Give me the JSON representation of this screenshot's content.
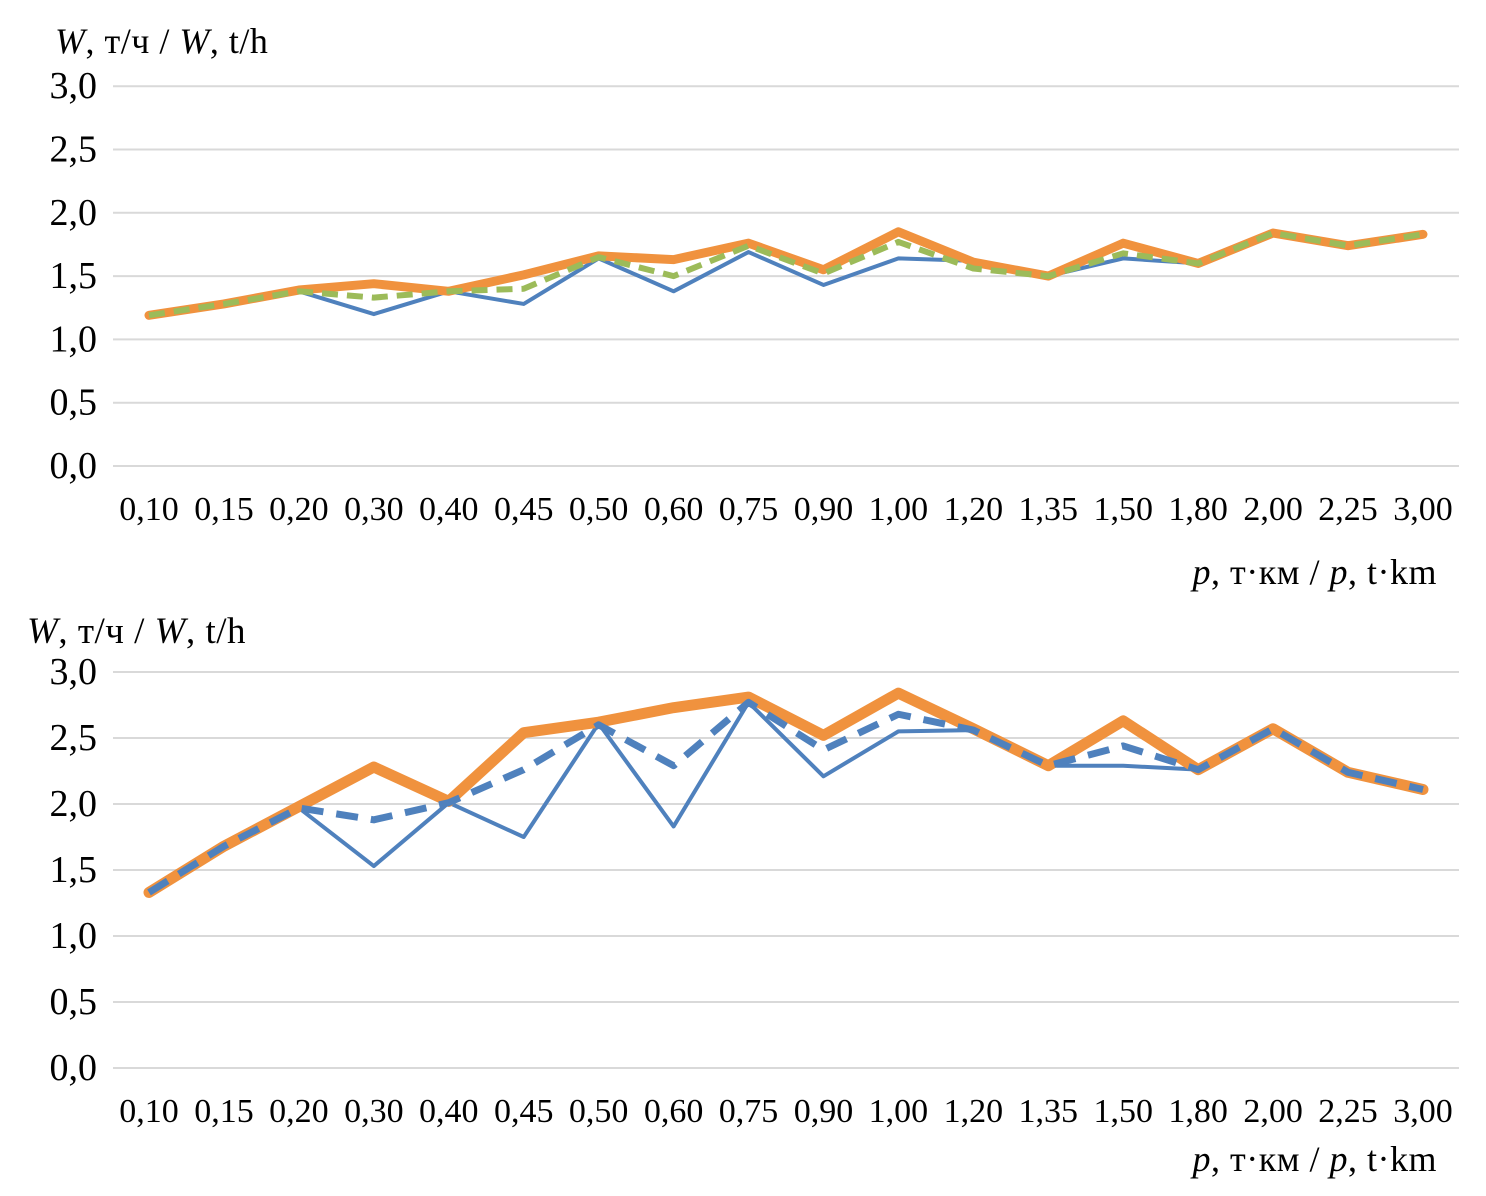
{
  "page": {
    "background": "#FFFFFF"
  },
  "colors": {
    "orange": "#F0923E",
    "green": "#9CBB59",
    "blue": "#4F81BD",
    "gridline": "#D9D9D9",
    "text": "#000000"
  },
  "chart_data": [
    {
      "type": "line",
      "title": "W, т/ч / W, t/h",
      "title_segments": [
        {
          "t": "W",
          "i": true
        },
        {
          "t": ", т/ч / ",
          "i": false
        },
        {
          "t": "W",
          "i": true
        },
        {
          "t": ", t/h",
          "i": false
        }
      ],
      "xlabel": "p, т·км / p, t·km",
      "xlabel_segments": [
        {
          "t": "p",
          "i": true
        },
        {
          "t": ", т·км / ",
          "i": false
        },
        {
          "t": "p",
          "i": true
        },
        {
          "t": ", t·km",
          "i": false
        }
      ],
      "ylabel": "W, т/ч / W, t/h",
      "categories": [
        "0,10",
        "0,15",
        "0,20",
        "0,30",
        "0,40",
        "0,45",
        "0,50",
        "0,60",
        "0,75",
        "0,90",
        "1,00",
        "1,20",
        "1,35",
        "1,50",
        "1,80",
        "2,00",
        "2,25",
        "3,00"
      ],
      "y_ticks": [
        "3,0",
        "2,5",
        "2,0",
        "1,5",
        "1,0",
        "0,5",
        "0,0"
      ],
      "ylim": [
        0.0,
        3.0
      ],
      "grid": true,
      "legend": "none",
      "series": [
        {
          "name": "thin-solid-blue-line",
          "color": "blue",
          "dash": "none",
          "width": 4,
          "values": [
            1.19,
            1.28,
            1.38,
            1.2,
            1.38,
            1.28,
            1.64,
            1.38,
            1.69,
            1.43,
            1.64,
            1.62,
            1.5,
            1.64,
            1.6,
            1.84,
            1.74,
            1.83
          ]
        },
        {
          "name": "thick-solid-orange-line",
          "color": "orange",
          "dash": "none",
          "width": 9,
          "values": [
            1.19,
            1.28,
            1.39,
            1.44,
            1.38,
            1.51,
            1.66,
            1.63,
            1.76,
            1.55,
            1.85,
            1.61,
            1.5,
            1.76,
            1.6,
            1.84,
            1.74,
            1.83
          ]
        },
        {
          "name": "dashed-green-line",
          "color": "green",
          "dash": "16 9",
          "width": 6,
          "values": [
            1.19,
            1.28,
            1.38,
            1.33,
            1.38,
            1.4,
            1.65,
            1.5,
            1.74,
            1.52,
            1.77,
            1.56,
            1.5,
            1.68,
            1.6,
            1.84,
            1.74,
            1.83
          ]
        }
      ]
    },
    {
      "type": "line",
      "title": "W, т/ч / W, t/h",
      "title_segments": [
        {
          "t": "W",
          "i": true
        },
        {
          "t": ", т/ч / ",
          "i": false
        },
        {
          "t": "W",
          "i": true
        },
        {
          "t": ", t/h",
          "i": false
        }
      ],
      "xlabel": "p, т·км / p, t·km",
      "xlabel_segments": [
        {
          "t": "p",
          "i": true
        },
        {
          "t": ", т·км / ",
          "i": false
        },
        {
          "t": "p",
          "i": true
        },
        {
          "t": ", t·km",
          "i": false
        }
      ],
      "ylabel": "W, т/ч / W, t/h",
      "categories": [
        "0,10",
        "0,15",
        "0,20",
        "0,30",
        "0,40",
        "0,45",
        "0,50",
        "0,60",
        "0,75",
        "0,90",
        "1,00",
        "1,20",
        "1,35",
        "1,50",
        "1,80",
        "2,00",
        "2,25",
        "3,00"
      ],
      "y_ticks": [
        "3,0",
        "2,5",
        "2,0",
        "1,5",
        "1,0",
        "0,5",
        "0,0"
      ],
      "ylim": [
        0.0,
        3.0
      ],
      "grid": true,
      "legend": "none",
      "series": [
        {
          "name": "thin-solid-blue-line",
          "color": "blue",
          "dash": "none",
          "width": 4,
          "values": [
            1.33,
            1.68,
            1.97,
            1.53,
            2.01,
            1.75,
            2.61,
            1.83,
            2.77,
            2.21,
            2.55,
            2.56,
            2.29,
            2.29,
            2.26,
            2.55,
            2.24,
            2.11
          ]
        },
        {
          "name": "thick-solid-orange-line",
          "color": "orange",
          "dash": "none",
          "width": 11,
          "values": [
            1.33,
            1.68,
            1.98,
            2.28,
            2.02,
            2.54,
            2.62,
            2.73,
            2.81,
            2.52,
            2.84,
            2.57,
            2.29,
            2.63,
            2.26,
            2.57,
            2.24,
            2.11
          ]
        },
        {
          "name": "thick-dashed-blue-line",
          "color": "blue",
          "dash": "22 13",
          "width": 7,
          "values": [
            1.33,
            1.68,
            1.97,
            1.88,
            2.01,
            2.26,
            2.6,
            2.29,
            2.77,
            2.41,
            2.68,
            2.56,
            2.29,
            2.44,
            2.26,
            2.57,
            2.24,
            2.11
          ]
        }
      ]
    }
  ]
}
